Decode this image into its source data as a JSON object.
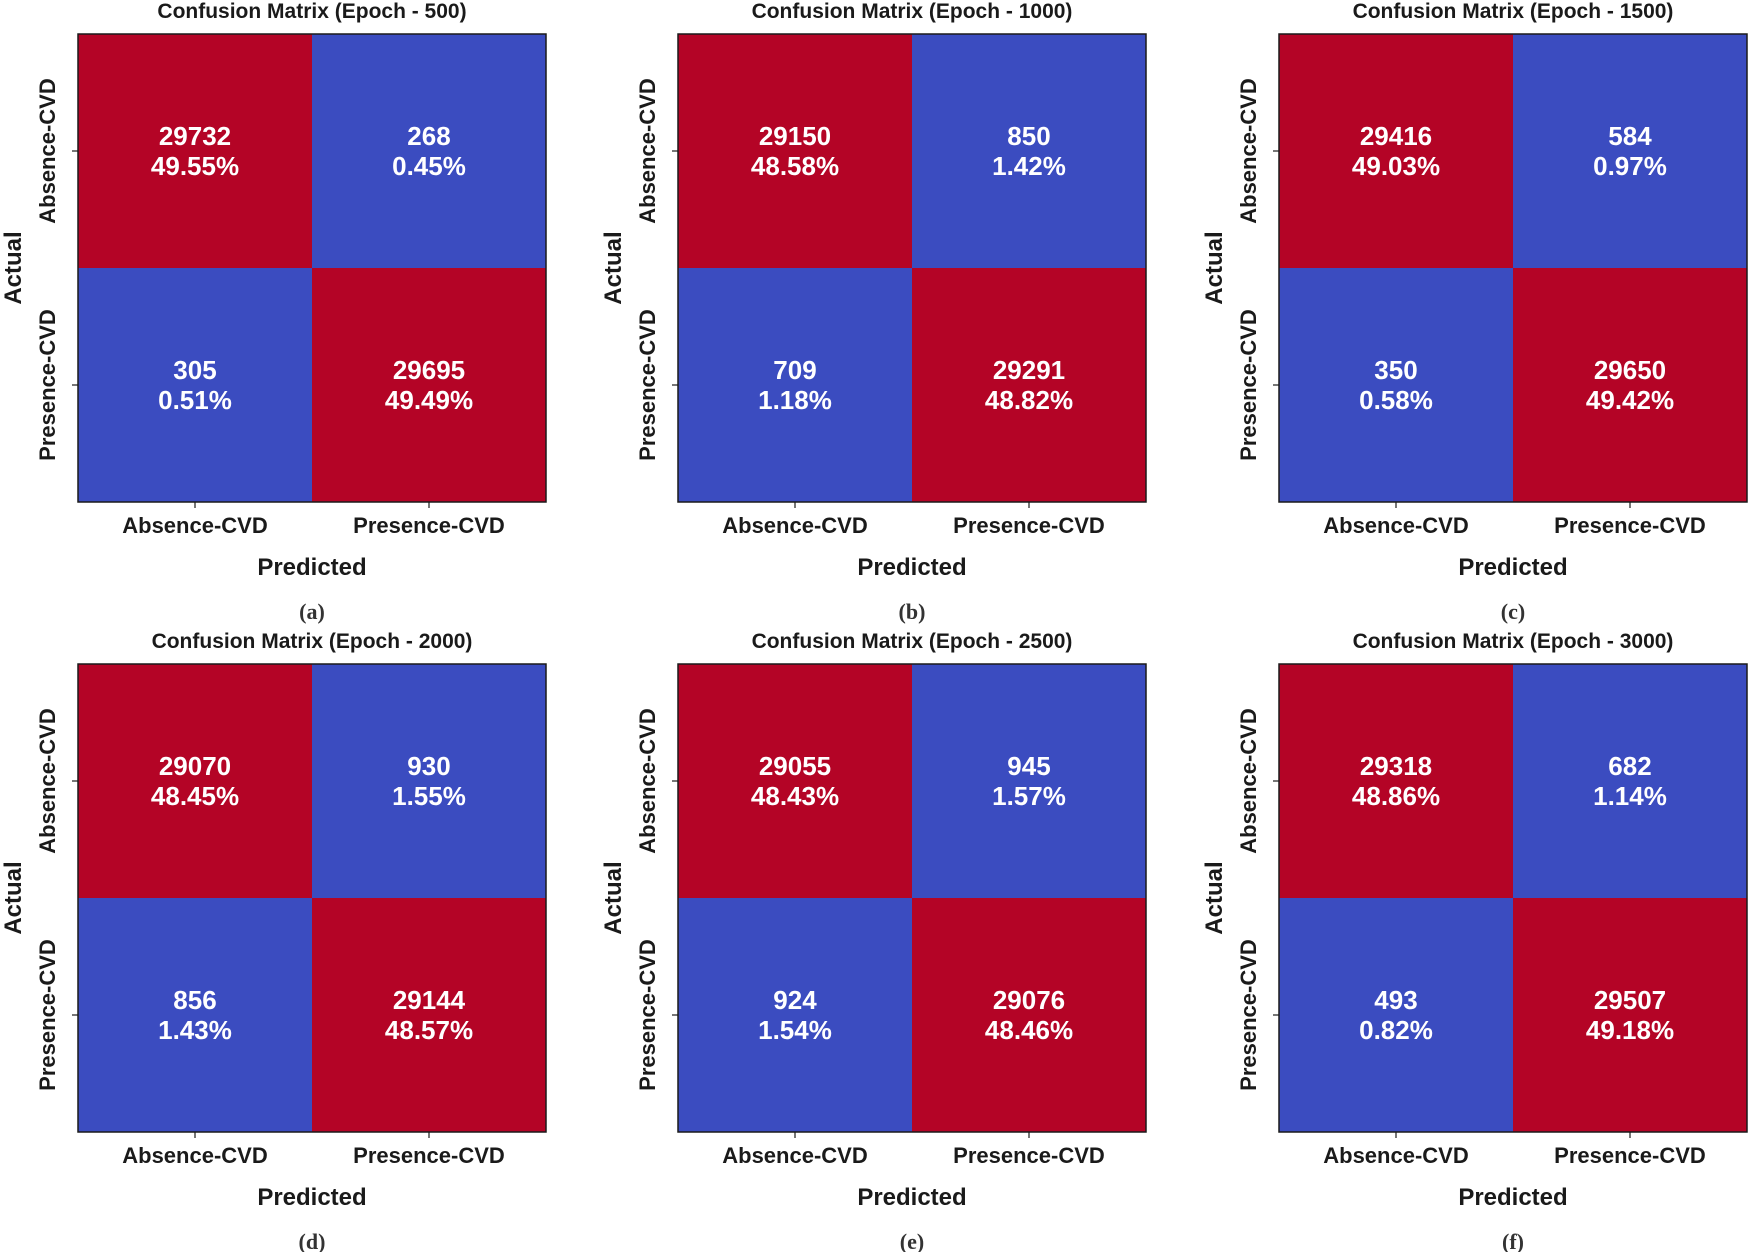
{
  "colors": {
    "high": "#b40426",
    "low": "#3b4cc0",
    "text": "#ffffff",
    "frame": "#1a1a1a"
  },
  "chart_data": [
    {
      "type": "heatmap",
      "title": "Confusion Matrix (Epoch - 500)",
      "caption": "(a)",
      "xlabel": "Predicted",
      "ylabel": "Actual",
      "x_categories": [
        "Absence-CVD",
        "Presence-CVD"
      ],
      "y_categories": [
        "Absence-CVD",
        "Presence-CVD"
      ],
      "values": [
        [
          29732,
          268
        ],
        [
          305,
          29695
        ]
      ],
      "percent_labels": [
        [
          "49.55%",
          "0.45%"
        ],
        [
          "0.51%",
          "49.49%"
        ]
      ]
    },
    {
      "type": "heatmap",
      "title": "Confusion Matrix (Epoch - 1000)",
      "caption": "(b)",
      "xlabel": "Predicted",
      "ylabel": "Actual",
      "x_categories": [
        "Absence-CVD",
        "Presence-CVD"
      ],
      "y_categories": [
        "Absence-CVD",
        "Presence-CVD"
      ],
      "values": [
        [
          29150,
          850
        ],
        [
          709,
          29291
        ]
      ],
      "percent_labels": [
        [
          "48.58%",
          "1.42%"
        ],
        [
          "1.18%",
          "48.82%"
        ]
      ]
    },
    {
      "type": "heatmap",
      "title": "Confusion Matrix (Epoch - 1500)",
      "caption": "(c)",
      "xlabel": "Predicted",
      "ylabel": "Actual",
      "x_categories": [
        "Absence-CVD",
        "Presence-CVD"
      ],
      "y_categories": [
        "Absence-CVD",
        "Presence-CVD"
      ],
      "values": [
        [
          29416,
          584
        ],
        [
          350,
          29650
        ]
      ],
      "percent_labels": [
        [
          "49.03%",
          "0.97%"
        ],
        [
          "0.58%",
          "49.42%"
        ]
      ]
    },
    {
      "type": "heatmap",
      "title": "Confusion Matrix (Epoch - 2000)",
      "caption": "(d)",
      "xlabel": "Predicted",
      "ylabel": "Actual",
      "x_categories": [
        "Absence-CVD",
        "Presence-CVD"
      ],
      "y_categories": [
        "Absence-CVD",
        "Presence-CVD"
      ],
      "values": [
        [
          29070,
          930
        ],
        [
          856,
          29144
        ]
      ],
      "percent_labels": [
        [
          "48.45%",
          "1.55%"
        ],
        [
          "1.43%",
          "48.57%"
        ]
      ]
    },
    {
      "type": "heatmap",
      "title": "Confusion Matrix (Epoch - 2500)",
      "caption": "(e)",
      "xlabel": "Predicted",
      "ylabel": "Actual",
      "x_categories": [
        "Absence-CVD",
        "Presence-CVD"
      ],
      "y_categories": [
        "Absence-CVD",
        "Presence-CVD"
      ],
      "values": [
        [
          29055,
          945
        ],
        [
          924,
          29076
        ]
      ],
      "percent_labels": [
        [
          "48.43%",
          "1.57%"
        ],
        [
          "1.54%",
          "48.46%"
        ]
      ]
    },
    {
      "type": "heatmap",
      "title": "Confusion Matrix (Epoch - 3000)",
      "caption": "(f)",
      "xlabel": "Predicted",
      "ylabel": "Actual",
      "x_categories": [
        "Absence-CVD",
        "Presence-CVD"
      ],
      "y_categories": [
        "Absence-CVD",
        "Presence-CVD"
      ],
      "values": [
        [
          29318,
          682
        ],
        [
          493,
          29507
        ]
      ],
      "percent_labels": [
        [
          "48.86%",
          "1.14%"
        ],
        [
          "0.82%",
          "49.18%"
        ]
      ]
    }
  ]
}
